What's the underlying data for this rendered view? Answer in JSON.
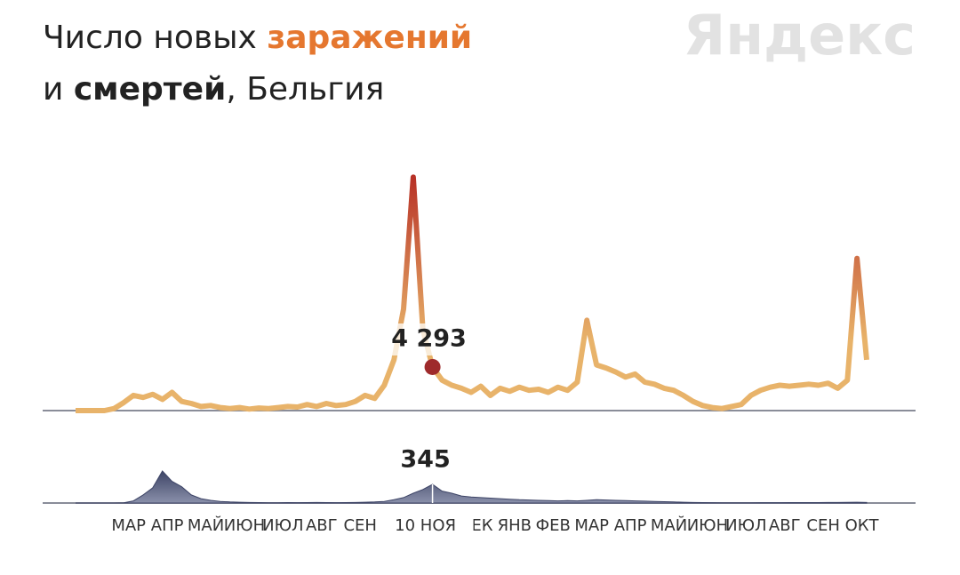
{
  "chart_data": {
    "type": "line",
    "title_parts": [
      "Число новых ",
      "заражений",
      "и ",
      "смертей",
      ", Бельгия"
    ],
    "logo": "Яндекс",
    "month_labels": [
      "МАР",
      "АПР",
      "МАЙ",
      "ИЮН",
      "ИЮЛ",
      "АВГ",
      "СЕН",
      null,
      null,
      "ДЕК",
      "ЯНВ",
      "ФЕВ",
      "МАР",
      "АПР",
      "МАЙ",
      "ИЮН",
      "ИЮЛ",
      "АВГ",
      "СЕН",
      "ОКТ"
    ],
    "highlight_label": "10 НОЯ",
    "series": [
      {
        "name": "заражений",
        "color": "#e8b36a",
        "peak_color": "#b83227",
        "values": [
          0,
          0,
          0,
          0,
          200,
          800,
          1500,
          1300,
          1600,
          1100,
          1800,
          900,
          700,
          400,
          500,
          300,
          200,
          300,
          150,
          250,
          200,
          300,
          400,
          350,
          600,
          400,
          700,
          500,
          600,
          900,
          1500,
          1200,
          2500,
          5000,
          10000,
          23000,
          8000,
          4293,
          3000,
          2500,
          2200,
          1800,
          2400,
          1500,
          2200,
          1900,
          2300,
          2000,
          2100,
          1800,
          2300,
          2000,
          2800,
          8900,
          4500,
          4200,
          3800,
          3300,
          3600,
          2800,
          2600,
          2200,
          2000,
          1500,
          900,
          500,
          300,
          200,
          400,
          600,
          1500,
          2000,
          2300,
          2500,
          2400,
          2500,
          2600,
          2500,
          2700,
          2200,
          3000,
          15000,
          5000
        ],
        "value_labels": {
          "37": "4 293"
        }
      },
      {
        "name": "смертей",
        "color": "#3d4466",
        "peak_color": "#8a90aa",
        "values": [
          0,
          0,
          0,
          0,
          0,
          5,
          40,
          150,
          280,
          590,
          400,
          300,
          150,
          80,
          50,
          30,
          20,
          15,
          10,
          8,
          5,
          5,
          8,
          6,
          8,
          10,
          8,
          6,
          8,
          10,
          15,
          20,
          30,
          60,
          100,
          180,
          250,
          345,
          220,
          180,
          130,
          110,
          100,
          90,
          80,
          70,
          60,
          55,
          50,
          45,
          40,
          45,
          40,
          50,
          60,
          55,
          50,
          45,
          40,
          35,
          30,
          25,
          20,
          15,
          10,
          8,
          6,
          5,
          5,
          4,
          5,
          6,
          6,
          7,
          8,
          8,
          8,
          9,
          10,
          10,
          12,
          15,
          10
        ],
        "value_labels": {
          "37": "345"
        }
      }
    ]
  }
}
